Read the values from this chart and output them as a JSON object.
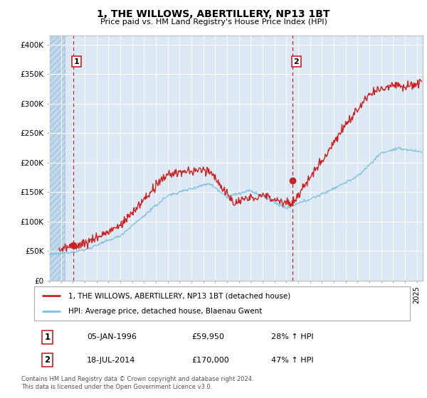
{
  "title": "1, THE WILLOWS, ABERTILLERY, NP13 1BT",
  "subtitle": "Price paid vs. HM Land Registry's House Price Index (HPI)",
  "ylabel_ticks": [
    "£0",
    "£50K",
    "£100K",
    "£150K",
    "£200K",
    "£250K",
    "£300K",
    "£350K",
    "£400K"
  ],
  "ytick_values": [
    0,
    50000,
    100000,
    150000,
    200000,
    250000,
    300000,
    350000,
    400000
  ],
  "ylim": [
    0,
    415000
  ],
  "xlim_start": 1994.0,
  "xlim_end": 2025.5,
  "sale1_date": 1996.03,
  "sale1_price": 59950,
  "sale1_label": "1",
  "sale2_date": 2014.54,
  "sale2_price": 170000,
  "sale2_label": "2",
  "hpi_line_color": "#7fbfdf",
  "price_line_color": "#cc2222",
  "dashed_line_color": "#cc2222",
  "marker_color": "#cc2222",
  "legend_entry1": "1, THE WILLOWS, ABERTILLERY, NP13 1BT (detached house)",
  "legend_entry2": "HPI: Average price, detached house, Blaenau Gwent",
  "table_row1": [
    "1",
    "05-JAN-1996",
    "£59,950",
    "28% ↑ HPI"
  ],
  "table_row2": [
    "2",
    "18-JUL-2014",
    "£170,000",
    "47% ↑ HPI"
  ],
  "footnote": "Contains HM Land Registry data © Crown copyright and database right 2024.\nThis data is licensed under the Open Government Licence v3.0.",
  "background_color": "#ffffff",
  "plot_bg_color": "#dce9f5",
  "hatch_left_end": 1995.3
}
